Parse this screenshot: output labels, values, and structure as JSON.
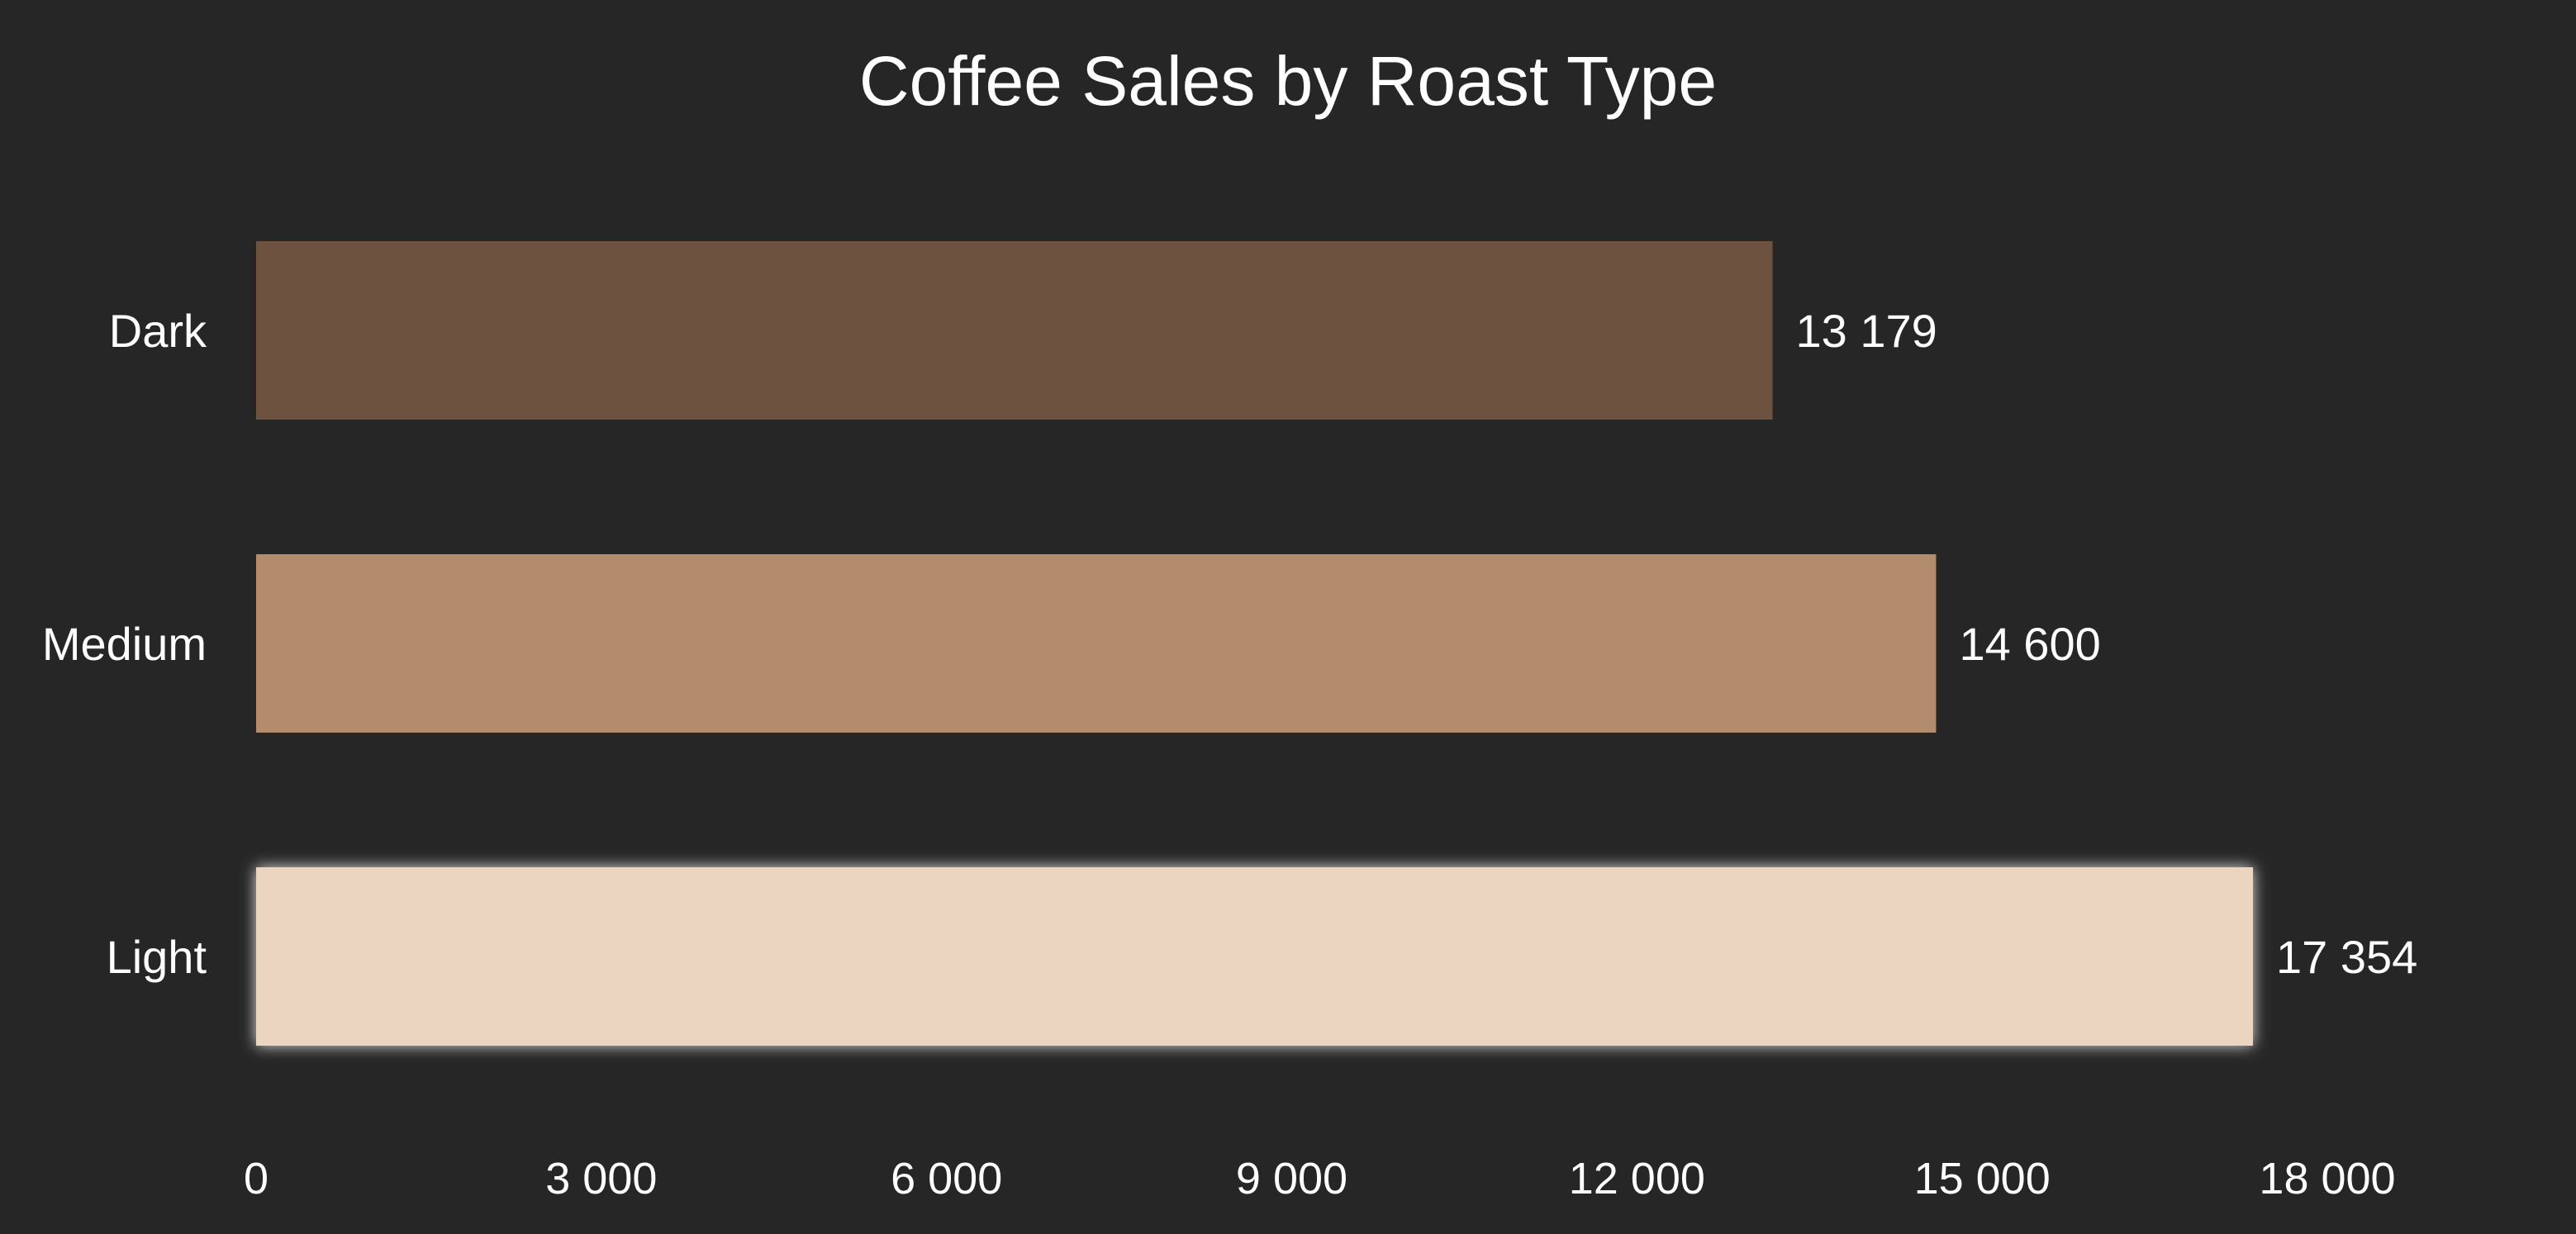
{
  "chart_data": {
    "type": "bar",
    "orientation": "horizontal",
    "title": "Coffee Sales by Roast Type",
    "xlabel": "",
    "ylabel": "",
    "categories": [
      "Dark",
      "Medium",
      "Light"
    ],
    "values": [
      13179,
      14600,
      17354
    ],
    "value_labels": [
      "13 179",
      "14 600",
      "17 354"
    ],
    "colors": [
      "#6d5240",
      "#b38b6d",
      "#ecd5c0"
    ],
    "highlighted_category": "Light",
    "xlim": [
      0,
      18000
    ],
    "x_ticks": [
      0,
      3000,
      6000,
      9000,
      12000,
      15000,
      18000
    ],
    "x_tick_labels": [
      "0",
      "3 000",
      "6 000",
      "9 000",
      "12 000",
      "15 000",
      "18 000"
    ],
    "grid": false,
    "legend": "none",
    "background": "#262626"
  }
}
